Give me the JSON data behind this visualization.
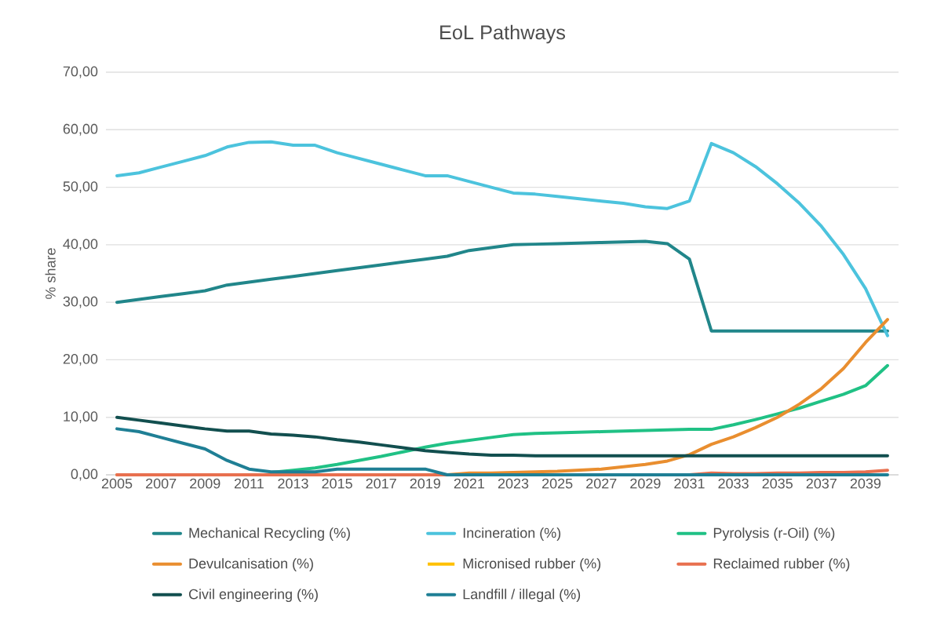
{
  "chart_data": {
    "type": "line",
    "title": "EoL Pathways",
    "ylabel": "% share",
    "x": [
      2005,
      2006,
      2007,
      2008,
      2009,
      2010,
      2011,
      2012,
      2013,
      2014,
      2015,
      2016,
      2017,
      2018,
      2019,
      2020,
      2021,
      2022,
      2023,
      2024,
      2025,
      2026,
      2027,
      2028,
      2029,
      2030,
      2031,
      2032,
      2033,
      2034,
      2035,
      2036,
      2037,
      2038,
      2039,
      2040
    ],
    "xlim": [
      2004.5,
      2040.5
    ],
    "xticks": [
      2005,
      2007,
      2009,
      2011,
      2013,
      2015,
      2017,
      2019,
      2021,
      2023,
      2025,
      2027,
      2029,
      2031,
      2033,
      2035,
      2037,
      2039
    ],
    "ylim": [
      0,
      70
    ],
    "yticks": [
      {
        "value": 0,
        "label": "0,00"
      },
      {
        "value": 10,
        "label": "10,00"
      },
      {
        "value": 20,
        "label": "20,00"
      },
      {
        "value": 30,
        "label": "30,00"
      },
      {
        "value": 40,
        "label": "40,00"
      },
      {
        "value": 50,
        "label": "50,00"
      },
      {
        "value": 60,
        "label": "60,00"
      },
      {
        "value": 70,
        "label": "70,00"
      }
    ],
    "grid": "y",
    "legend": "bottom",
    "series": [
      {
        "name": "Mechanical Recycling (%)",
        "color": "#21868a",
        "values": [
          30,
          30.5,
          31,
          31.5,
          32,
          33,
          33.5,
          34,
          34.5,
          35,
          35.5,
          36,
          36.5,
          37,
          37.5,
          38,
          39,
          39.5,
          40,
          40.1,
          40.2,
          40.3,
          40.4,
          40.5,
          40.6,
          40.2,
          37.5,
          25,
          25,
          25,
          25,
          25,
          25,
          25,
          25,
          25
        ]
      },
      {
        "name": "Incineration (%)",
        "color": "#4cc3dd",
        "values": [
          52,
          52.5,
          53.5,
          54.5,
          55.5,
          57,
          57.8,
          57.9,
          57.3,
          57.3,
          56,
          55,
          54,
          53,
          52,
          52,
          51,
          50,
          49,
          48.8,
          48.4,
          48,
          47.6,
          47.2,
          46.6,
          46.3,
          47.6,
          57.6,
          56,
          53.6,
          50.6,
          47.2,
          43.2,
          38.3,
          32.4,
          24.2
        ]
      },
      {
        "name": "Pyrolysis (r-Oil) (%)",
        "color": "#20c185",
        "values": [
          null,
          null,
          null,
          null,
          null,
          null,
          null,
          0.4,
          0.8,
          1.2,
          1.8,
          2.5,
          3.2,
          4,
          4.8,
          5.5,
          6,
          6.5,
          7,
          7.2,
          7.3,
          7.4,
          7.5,
          7.6,
          7.7,
          7.8,
          7.9,
          7.9,
          8.7,
          9.6,
          10.6,
          11.6,
          12.8,
          14,
          15.5,
          19
        ]
      },
      {
        "name": "Devulcanisation (%)",
        "color": "#e98e2f",
        "values": [
          0,
          0,
          0,
          0,
          0,
          0,
          0,
          0,
          0,
          0,
          0,
          0,
          0,
          0,
          0,
          0,
          0.3,
          0.3,
          0.4,
          0.5,
          0.6,
          0.8,
          1,
          1.4,
          1.8,
          2.4,
          3.5,
          5.3,
          6.6,
          8.2,
          10,
          12.3,
          15,
          18.5,
          23,
          27
        ]
      },
      {
        "name": "Micronised rubber (%)",
        "color": "#ffc000",
        "values": [
          null,
          null,
          null,
          null,
          null,
          null,
          null,
          null,
          null,
          null,
          null,
          null,
          null,
          null,
          null,
          null,
          null,
          null,
          null,
          null,
          null,
          null,
          null,
          null,
          null,
          null,
          null,
          null,
          null,
          null,
          null,
          null,
          null,
          null,
          null,
          null
        ]
      },
      {
        "name": "Reclaimed rubber (%)",
        "color": "#e8704f",
        "values": [
          0,
          0,
          0,
          0,
          0,
          0,
          0,
          0,
          0,
          0,
          0,
          0,
          0,
          0,
          0,
          0,
          0,
          0,
          0,
          0,
          0,
          0,
          0,
          0,
          0,
          0,
          0,
          0.3,
          0.2,
          0.2,
          0.3,
          0.3,
          0.4,
          0.4,
          0.5,
          0.8
        ]
      },
      {
        "name": "Civil engineering (%)",
        "color": "#124f4f",
        "values": [
          10,
          9.5,
          9,
          8.5,
          8,
          7.6,
          7.6,
          7.1,
          6.9,
          6.6,
          6.1,
          5.7,
          5.2,
          4.7,
          4.2,
          3.9,
          3.6,
          3.4,
          3.4,
          3.3,
          3.3,
          3.3,
          3.3,
          3.3,
          3.3,
          3.3,
          3.3,
          3.3,
          3.3,
          3.3,
          3.3,
          3.3,
          3.3,
          3.3,
          3.3,
          3.3
        ]
      },
      {
        "name": "Landfill / illegal (%)",
        "color": "#1f7f95",
        "values": [
          8,
          7.5,
          6.5,
          5.5,
          4.5,
          2.5,
          1,
          0.5,
          0.5,
          0.5,
          1,
          1,
          1,
          1,
          1,
          0,
          0,
          0,
          0,
          0,
          0,
          0,
          0,
          0,
          0,
          0,
          0,
          0,
          0,
          0,
          0,
          0,
          0,
          0,
          0,
          0
        ]
      }
    ]
  }
}
